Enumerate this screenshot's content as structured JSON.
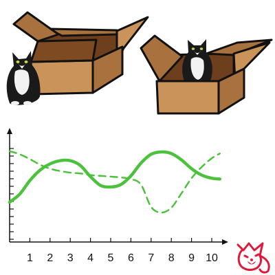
{
  "colors": {
    "box_light": "#c9935a",
    "box_mid": "#a8713e",
    "box_dark": "#6e3f1c",
    "box_outline": "#111111",
    "cat_fur": "#1a1a1a",
    "cat_white": "#f2f2f2",
    "series_color": "#4cc23c",
    "logo_color": "#e0193a",
    "axis_color": "#111111"
  },
  "icons": [
    "cardboard-box-icon",
    "cat-icon",
    "fox-logo-icon"
  ],
  "chart_data": {
    "type": "line",
    "title": "",
    "xlabel": "",
    "ylabel": "",
    "xlim": [
      0,
      10.5
    ],
    "ylim": [
      0,
      10
    ],
    "x_ticks": [
      "1",
      "2",
      "3",
      "4",
      "5",
      "6",
      "7",
      "8",
      "9",
      "10"
    ],
    "y_tick_count": 13,
    "grid": false,
    "legend": "none",
    "series": [
      {
        "style": "solid",
        "color": "#4cc23c",
        "x": [
          0,
          0.5,
          1,
          1.5,
          2,
          2.5,
          3,
          3.5,
          4,
          4.5,
          5,
          5.5,
          6,
          6.5,
          7,
          7.5,
          8,
          8.5,
          9,
          9.5,
          10,
          10.4
        ],
        "y": [
          3.1,
          4.1,
          5.8,
          7.1,
          7.9,
          8.3,
          8.3,
          7.7,
          6.3,
          5.2,
          5.0,
          5.3,
          6.4,
          8.0,
          9.1,
          9.4,
          9.2,
          8.4,
          7.3,
          6.5,
          6.1,
          6.0
        ]
      },
      {
        "style": "dashed",
        "color": "#4cc23c",
        "x": [
          0,
          0.5,
          1,
          1.5,
          2,
          2.5,
          3,
          3.5,
          4,
          4.5,
          5,
          5.5,
          6,
          6.5,
          7,
          7.5,
          8,
          8.5,
          9,
          9.5,
          10,
          10.4
        ],
        "y": [
          9.5,
          9.1,
          8.5,
          7.8,
          7.3,
          7.0,
          6.8,
          6.7,
          6.5,
          6.4,
          6.3,
          6.2,
          6.0,
          5.3,
          2.5,
          1.8,
          2.4,
          4.2,
          6.1,
          7.5,
          8.6,
          9.2
        ]
      }
    ]
  }
}
